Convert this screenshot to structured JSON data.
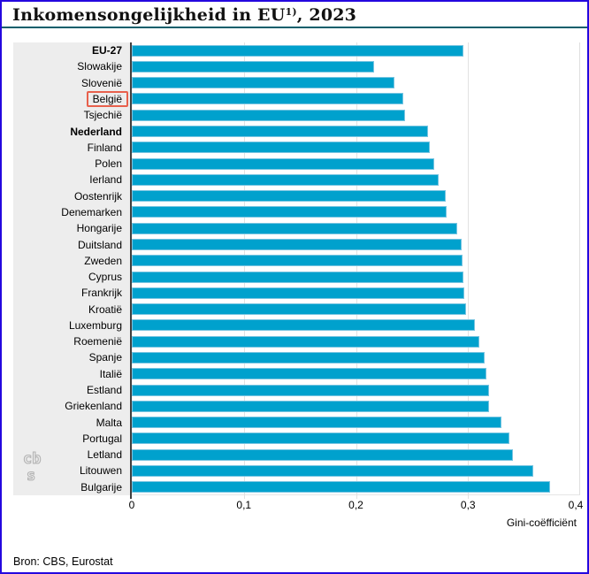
{
  "title": {
    "main": "Inkomensongelijkheid in EU",
    "superscript": "1)",
    "suffix": ", 2023"
  },
  "source": "Bron: CBS, Eurostat",
  "logo_text": "cbs",
  "chart_data": {
    "type": "bar",
    "orientation": "horizontal",
    "title": "Inkomensongelijkheid in EU, 2023",
    "xlabel": "Gini-coëfficiënt",
    "xlim": [
      0,
      0.4
    ],
    "xticks": [
      "0",
      "0,1",
      "0,2",
      "0,3",
      "0,4"
    ],
    "xtick_values": [
      0,
      0.1,
      0.2,
      0.3,
      0.4
    ],
    "grid": true,
    "categories": [
      "EU-27",
      "Slowakije",
      "Slovenië",
      "België",
      "Tsjechië",
      "Nederland",
      "Finland",
      "Polen",
      "Ierland",
      "Oostenrijk",
      "Denemarken",
      "Hongarije",
      "Duitsland",
      "Zweden",
      "Cyprus",
      "Frankrijk",
      "Kroatië",
      "Luxemburg",
      "Roemenië",
      "Spanje",
      "Italië",
      "Estland",
      "Griekenland",
      "Malta",
      "Portugal",
      "Letland",
      "Litouwen",
      "Bulgarije"
    ],
    "values": [
      0.296,
      0.216,
      0.234,
      0.242,
      0.244,
      0.264,
      0.266,
      0.27,
      0.274,
      0.28,
      0.281,
      0.29,
      0.294,
      0.295,
      0.296,
      0.297,
      0.298,
      0.306,
      0.31,
      0.315,
      0.316,
      0.319,
      0.319,
      0.33,
      0.337,
      0.34,
      0.358,
      0.373
    ],
    "bold_categories": [
      "EU-27",
      "Nederland"
    ],
    "highlighted_category": "België",
    "colors": {
      "bar_fill": "#00a1cd",
      "bar_border": "#79c5e1",
      "highlight_box": "#e8604c",
      "label_panel": "#ededed",
      "gridline": "#e2e2e2",
      "axis": "#3f3f3f",
      "title_rule": "#0a5f6b",
      "page_frame": "#2408df",
      "logo_grey": "#b3b3b3"
    }
  }
}
